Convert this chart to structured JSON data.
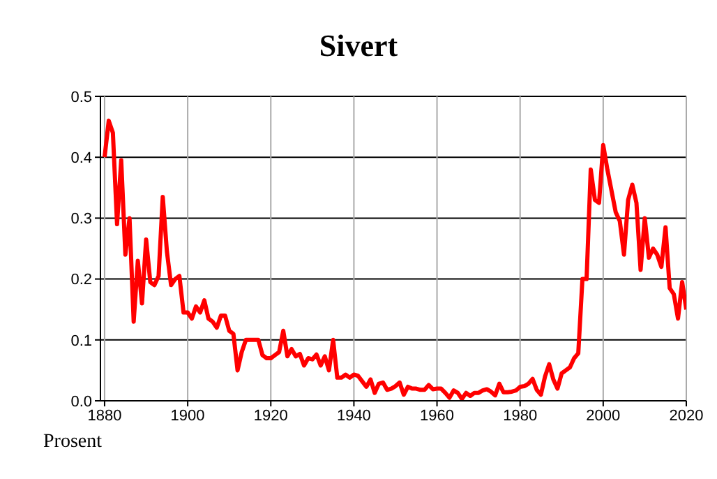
{
  "chart_data": {
    "type": "line",
    "title": "Sivert",
    "ylabel": "Prosent",
    "x": [
      1880,
      1881,
      1882,
      1883,
      1884,
      1885,
      1886,
      1887,
      1888,
      1889,
      1890,
      1891,
      1892,
      1893,
      1894,
      1895,
      1896,
      1897,
      1898,
      1899,
      1900,
      1901,
      1902,
      1903,
      1904,
      1905,
      1906,
      1907,
      1908,
      1909,
      1910,
      1911,
      1912,
      1913,
      1914,
      1915,
      1916,
      1917,
      1918,
      1919,
      1920,
      1921,
      1922,
      1923,
      1924,
      1925,
      1926,
      1927,
      1928,
      1929,
      1930,
      1931,
      1932,
      1933,
      1934,
      1935,
      1936,
      1937,
      1938,
      1939,
      1940,
      1941,
      1942,
      1943,
      1944,
      1945,
      1946,
      1947,
      1948,
      1949,
      1950,
      1951,
      1952,
      1953,
      1954,
      1955,
      1956,
      1957,
      1958,
      1959,
      1960,
      1961,
      1962,
      1963,
      1964,
      1965,
      1966,
      1967,
      1968,
      1969,
      1970,
      1971,
      1972,
      1973,
      1974,
      1975,
      1976,
      1977,
      1978,
      1979,
      1980,
      1981,
      1982,
      1983,
      1984,
      1985,
      1986,
      1987,
      1988,
      1989,
      1990,
      1991,
      1992,
      1993,
      1994,
      1995,
      1996,
      1997,
      1998,
      1999,
      2000,
      2001,
      2002,
      2003,
      2004,
      2005,
      2006,
      2007,
      2008,
      2009,
      2010,
      2011,
      2012,
      2013,
      2014,
      2015,
      2016,
      2017,
      2018,
      2019,
      2020
    ],
    "series": [
      {
        "color": "#ff0000",
        "values": [
          0.4,
          0.46,
          0.44,
          0.29,
          0.395,
          0.24,
          0.3,
          0.13,
          0.23,
          0.16,
          0.265,
          0.195,
          0.19,
          0.205,
          0.335,
          0.245,
          0.19,
          0.2,
          0.205,
          0.145,
          0.145,
          0.135,
          0.155,
          0.145,
          0.165,
          0.135,
          0.13,
          0.12,
          0.14,
          0.14,
          0.115,
          0.11,
          0.05,
          0.08,
          0.1,
          0.1,
          0.1,
          0.1,
          0.075,
          0.07,
          0.07,
          0.075,
          0.08,
          0.115,
          0.073,
          0.085,
          0.073,
          0.077,
          0.058,
          0.07,
          0.068,
          0.076,
          0.058,
          0.073,
          0.05,
          0.1,
          0.038,
          0.038,
          0.043,
          0.038,
          0.043,
          0.041,
          0.032,
          0.023,
          0.035,
          0.013,
          0.028,
          0.03,
          0.018,
          0.02,
          0.024,
          0.03,
          0.01,
          0.023,
          0.02,
          0.02,
          0.018,
          0.018,
          0.026,
          0.019,
          0.02,
          0.02,
          0.013,
          0.005,
          0.017,
          0.013,
          0.003,
          0.013,
          0.008,
          0.013,
          0.013,
          0.017,
          0.019,
          0.015,
          0.009,
          0.028,
          0.014,
          0.014,
          0.015,
          0.017,
          0.023,
          0.024,
          0.028,
          0.036,
          0.018,
          0.01,
          0.04,
          0.06,
          0.035,
          0.02,
          0.045,
          0.05,
          0.055,
          0.07,
          0.078,
          0.2,
          0.2,
          0.38,
          0.33,
          0.325,
          0.42,
          0.38,
          0.345,
          0.31,
          0.295,
          0.24,
          0.33,
          0.355,
          0.325,
          0.215,
          0.3,
          0.235,
          0.25,
          0.24,
          0.22,
          0.285,
          0.185,
          0.175,
          0.135,
          0.195,
          0.15
        ]
      }
    ],
    "xlim": [
      1879,
      2020
    ],
    "xticks": [
      1880,
      1900,
      1920,
      1940,
      1960,
      1980,
      2000,
      2020
    ],
    "ylim": [
      0,
      0.5
    ],
    "yticks": [
      {
        "value": 0,
        "label": "0.0"
      },
      {
        "value": 0.1,
        "label": "0.1"
      },
      {
        "value": 0.2,
        "label": "0.2"
      },
      {
        "value": 0.3,
        "label": "0.3"
      },
      {
        "value": 0.4,
        "label": "0.4"
      },
      {
        "value": 0.5,
        "label": "0.5"
      }
    ],
    "grid": true
  }
}
